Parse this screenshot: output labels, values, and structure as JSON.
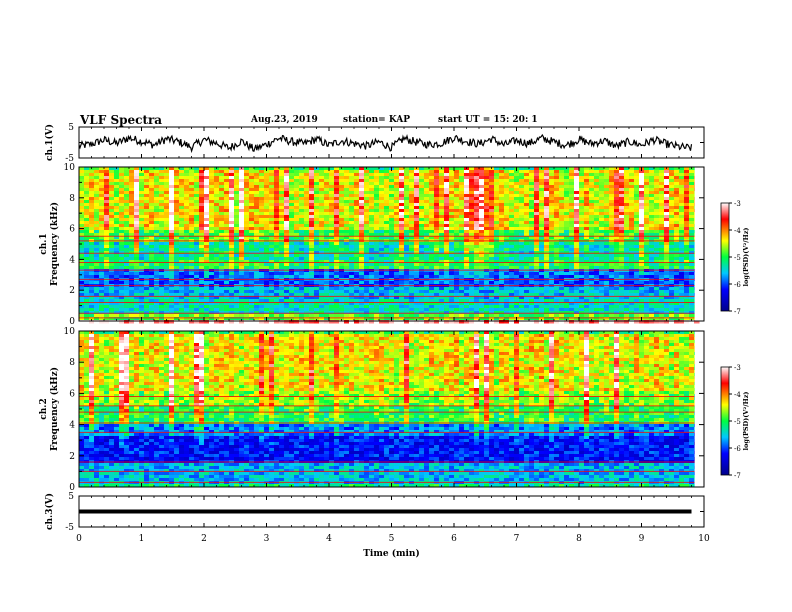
{
  "header": {
    "title": "VLF Spectra",
    "date": "Aug.23, 2019",
    "station": "station= KAP",
    "start": "start  UT  =   15: 20: 1"
  },
  "chart_data": [
    {
      "id": "ch1-waveform",
      "type": "line",
      "ylabel": "ch.1(V)",
      "ylim": [
        -5,
        5
      ],
      "yticks": [
        "5",
        "-5"
      ],
      "xlim": [
        0,
        10
      ],
      "series": [
        {
          "color": "#000000",
          "x": [
            0,
            0.2,
            0.4,
            0.6,
            0.8,
            1.0,
            1.2,
            1.4,
            1.6,
            1.8,
            2.0,
            2.2,
            2.4,
            2.6,
            2.8,
            3.0,
            3.2,
            3.4,
            3.6,
            3.8,
            4.0,
            4.2,
            4.4,
            4.6,
            4.8,
            5.0,
            5.2,
            5.4,
            5.6,
            5.8,
            6.0,
            6.2,
            6.4,
            6.6,
            6.8,
            7.0,
            7.2,
            7.4,
            7.6,
            7.8,
            8.0,
            8.2,
            8.4,
            8.6,
            8.8,
            9.0,
            9.2,
            9.4,
            9.6,
            9.8
          ],
          "values": [
            -1.2,
            -0.5,
            0.8,
            -0.3,
            1.5,
            0.4,
            -0.8,
            1.2,
            0.2,
            -1.5,
            0.9,
            -0.2,
            -1.8,
            0.5,
            -2.2,
            -0.6,
            1.4,
            0.3,
            -0.4,
            1.1,
            -0.9,
            0.6,
            -0.3,
            -1.1,
            0.2,
            -1.6,
            1.3,
            0.1,
            -0.7,
            -0.2,
            1.6,
            0.4,
            -0.5,
            1.2,
            -0.8,
            0.7,
            -0.3,
            1.4,
            0.2,
            -0.9,
            1.0,
            -0.4,
            0.6,
            -1.2,
            0.3,
            -0.8,
            0.9,
            -0.5,
            -1.4,
            -1.8
          ]
        }
      ]
    },
    {
      "id": "ch1-spectrogram",
      "type": "heatmap",
      "ylabel_top": "ch.1",
      "ylabel": "Frequency  (kHz)",
      "ylim": [
        0,
        10
      ],
      "yticks": [
        0,
        2,
        4,
        6,
        8,
        10
      ],
      "xlim": [
        0,
        10
      ],
      "colorbar": {
        "label": "log(PSD)(V²/Hz)",
        "range": [
          -7,
          -3
        ],
        "ticks": [
          "-3",
          "-4",
          "-5",
          "-6",
          "-7"
        ]
      },
      "bands_log_psd": [
        {
          "fmin": 0.0,
          "fmax": 0.2,
          "value": -3.2
        },
        {
          "fmin": 0.2,
          "fmax": 0.5,
          "value": -4.8
        },
        {
          "fmin": 0.5,
          "fmax": 1.5,
          "value": -5.4
        },
        {
          "fmin": 1.5,
          "fmax": 2.3,
          "value": -5.6
        },
        {
          "fmin": 2.3,
          "fmax": 3.5,
          "value": -5.9
        },
        {
          "fmin": 3.5,
          "fmax": 4.0,
          "value": -5.1
        },
        {
          "fmin": 4.0,
          "fmax": 5.2,
          "value": -5.3
        },
        {
          "fmin": 5.2,
          "fmax": 6.0,
          "value": -4.9
        },
        {
          "fmin": 6.0,
          "fmax": 10.0,
          "value": -4.4
        }
      ]
    },
    {
      "id": "ch2-spectrogram",
      "type": "heatmap",
      "ylabel_top": "ch.2",
      "ylabel": "Frequency  (kHz)",
      "ylim": [
        0,
        10
      ],
      "yticks": [
        0,
        2,
        4,
        6,
        8,
        10
      ],
      "xlim": [
        0,
        10
      ],
      "colorbar": {
        "label": "log(PSD)(V²/Hz)",
        "range": [
          -7,
          -3
        ],
        "ticks": [
          "-3",
          "-4",
          "-5",
          "-6",
          "-7"
        ]
      },
      "bands_log_psd": [
        {
          "fmin": 0.0,
          "fmax": 0.3,
          "value": -5.2
        },
        {
          "fmin": 0.3,
          "fmax": 1.6,
          "value": -5.6
        },
        {
          "fmin": 1.6,
          "fmax": 3.4,
          "value": -6.2
        },
        {
          "fmin": 3.4,
          "fmax": 4.2,
          "value": -5.8
        },
        {
          "fmin": 4.2,
          "fmax": 5.2,
          "value": -5.0
        },
        {
          "fmin": 5.2,
          "fmax": 6.2,
          "value": -4.7
        },
        {
          "fmin": 6.2,
          "fmax": 10.0,
          "value": -4.4
        }
      ]
    },
    {
      "id": "ch3-waveform",
      "type": "line",
      "ylabel": "ch.3(V)",
      "ylim": [
        -5,
        5
      ],
      "yticks": [
        "5",
        "-5"
      ],
      "xlim": [
        0,
        10
      ],
      "xlabel": "Time  (min)",
      "xticks": [
        0,
        1,
        2,
        3,
        4,
        5,
        6,
        7,
        8,
        9,
        10
      ],
      "series": [
        {
          "color": "#000000",
          "x": [
            0,
            9.8
          ],
          "values": [
            0,
            0
          ]
        }
      ]
    }
  ],
  "colors": {
    "blue": "#0000ff",
    "cyan": "#00c8ff",
    "green": "#00ff40",
    "yellow": "#ffff00",
    "red": "#ff0000",
    "frame": "#000000"
  }
}
